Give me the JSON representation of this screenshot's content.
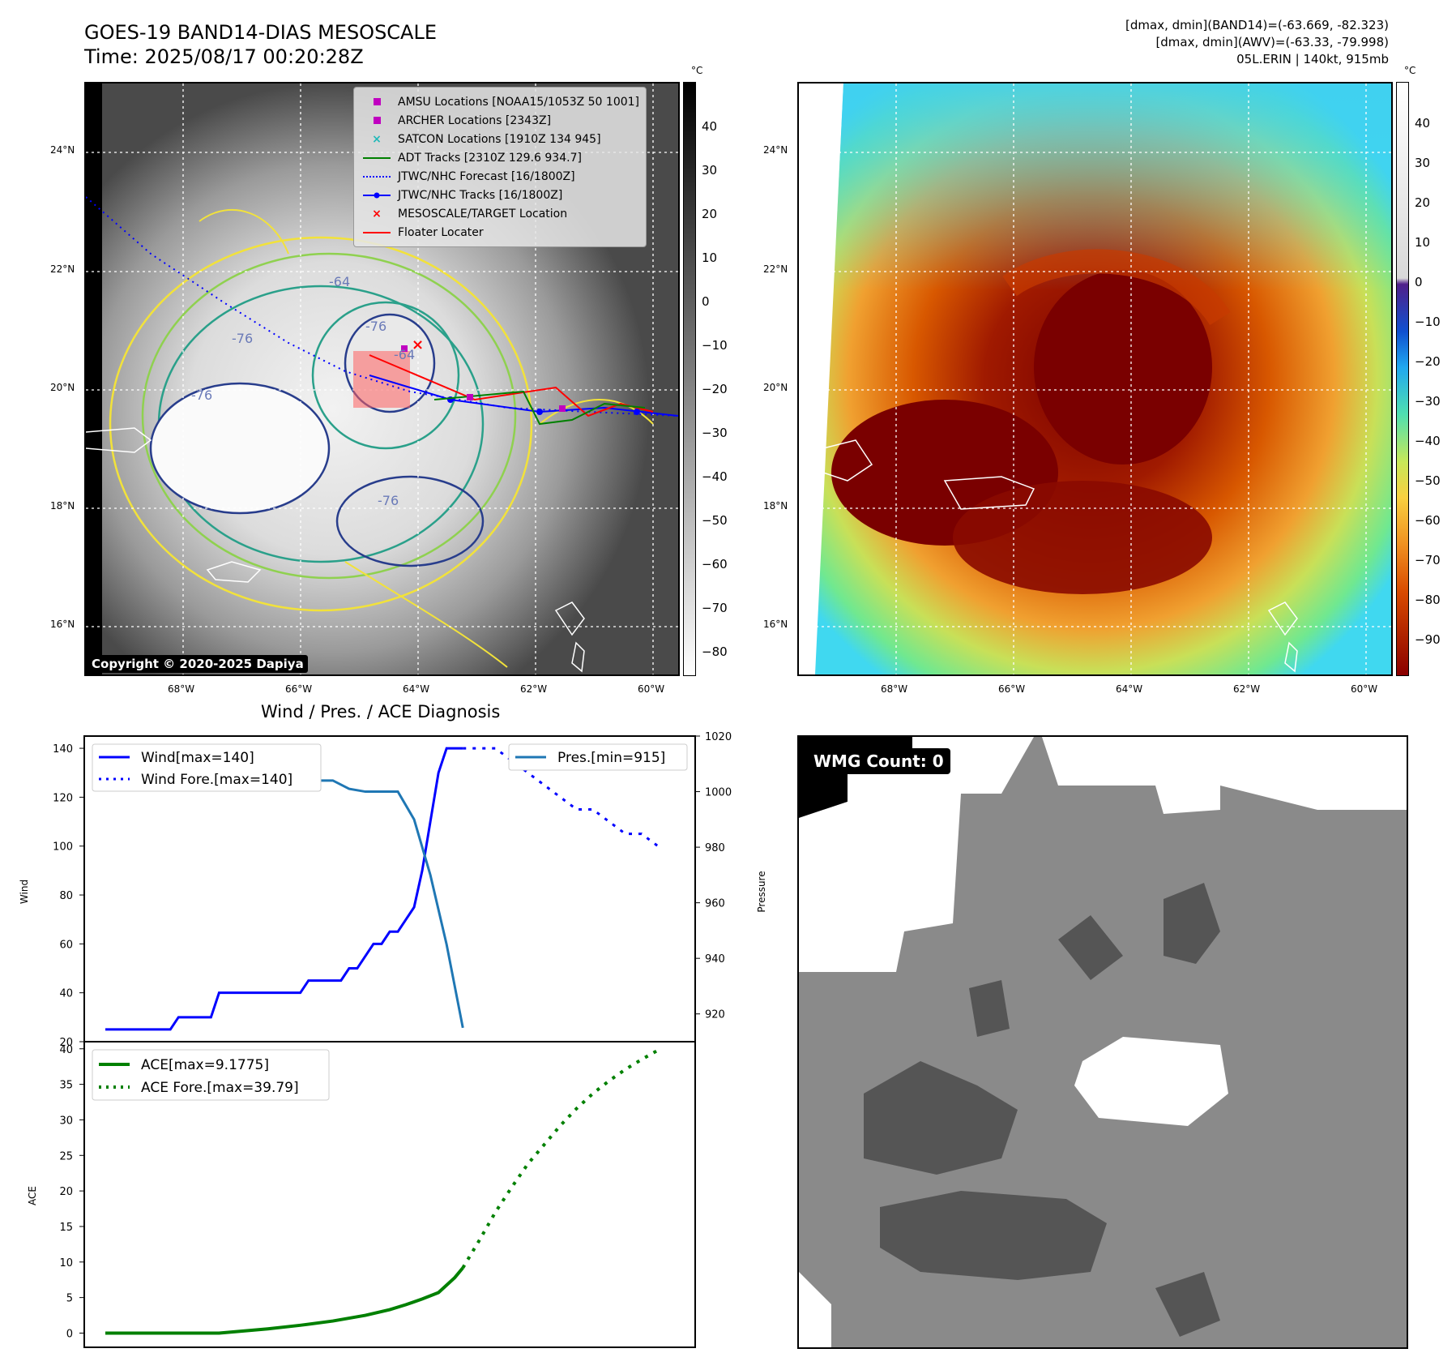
{
  "header": {
    "title_line1": "GOES-19 BAND14-DIAS MESOSCALE",
    "title_line2": "Time: 2025/08/17 00:20:28Z",
    "info_line1": "[dmax, dmin](BAND14)=(-63.669, -82.323)",
    "info_line2": "[dmax, dmin](AWV)=(-63.33, -79.998)",
    "info_line3": "05L.ERIN | 140kt, 915mb"
  },
  "map": {
    "lat_labels": [
      "24°N",
      "22°N",
      "20°N",
      "18°N",
      "16°N"
    ],
    "lon_labels": [
      "68°W",
      "66°W",
      "64°W",
      "62°W",
      "60°W"
    ],
    "copyright": "Copyright © 2020-2025 Dapiya",
    "contour_labels": [
      "-76",
      "-76",
      "-64",
      "-76",
      "-76",
      "-64"
    ]
  },
  "colorbar_ir": {
    "unit": "°C",
    "ticks": [
      "40",
      "30",
      "20",
      "10",
      "0",
      "−10",
      "−20",
      "−30",
      "−40",
      "−50",
      "−60",
      "−70",
      "−80"
    ]
  },
  "colorbar_awv": {
    "unit": "°C",
    "ticks": [
      "40",
      "30",
      "20",
      "10",
      "0",
      "−10",
      "−20",
      "−30",
      "−40",
      "−50",
      "−60",
      "−70",
      "−80",
      "−90"
    ]
  },
  "legend": {
    "items": [
      {
        "label": "AMSU Locations [NOAA15/1053Z 50 1001]",
        "icon": "square-marker",
        "color": "#c000c0"
      },
      {
        "label": "ARCHER Locations [2343Z]",
        "icon": "square-marker",
        "color": "#c000c0"
      },
      {
        "label": "SATCON Locations [1910Z 134 945]",
        "icon": "x-marker",
        "color": "#20b8b8"
      },
      {
        "label": "ADT Tracks [2310Z 129.6 934.7]",
        "icon": "line-solid",
        "color": "#008000"
      },
      {
        "label": "JTWC/NHC Forecast [16/1800Z]",
        "icon": "line-dotted",
        "color": "#0000ff"
      },
      {
        "label": "JTWC/NHC Tracks [16/1800Z]",
        "icon": "line-dot-marker",
        "color": "#0000ff"
      },
      {
        "label": "MESOSCALE/TARGET Location",
        "icon": "x-marker",
        "color": "#ff0000"
      },
      {
        "label": "Floater Locater",
        "icon": "line-solid",
        "color": "#ff0000"
      }
    ]
  },
  "chart_data": [
    {
      "type": "line",
      "title": "Wind / Pres. / ACE Diagnosis",
      "ylabel": "Wind",
      "y2label": "Pressure",
      "ylim": [
        20,
        145
      ],
      "y2lim": [
        910,
        1020
      ],
      "yticks": [
        20,
        40,
        60,
        80,
        100,
        120,
        140
      ],
      "y2ticks": [
        920,
        940,
        960,
        980,
        1000,
        1020
      ],
      "series": [
        {
          "name": "Wind[max=140]",
          "axis": "left",
          "style": "solid",
          "color": "#0000ff",
          "x": [
            0,
            1,
            2,
            3,
            4,
            5,
            6,
            7,
            8,
            9,
            10,
            11,
            12,
            13,
            14,
            15,
            16,
            17,
            18,
            19,
            20,
            21,
            22,
            23,
            24,
            25,
            26,
            27,
            28,
            29,
            30,
            31,
            32,
            33,
            34,
            35,
            36,
            37,
            38,
            39,
            40,
            41,
            42,
            43,
            44
          ],
          "values": [
            25,
            25,
            25,
            25,
            25,
            25,
            25,
            25,
            25,
            30,
            30,
            30,
            30,
            30,
            40,
            40,
            40,
            40,
            40,
            40,
            40,
            40,
            40,
            40,
            40,
            45,
            45,
            45,
            45,
            45,
            50,
            50,
            55,
            60,
            60,
            65,
            65,
            70,
            75,
            90,
            110,
            130,
            140,
            140,
            140
          ]
        },
        {
          "name": "Wind Fore.[max=140]",
          "axis": "left",
          "style": "dotted",
          "color": "#0000ff",
          "x": [
            44,
            46,
            48,
            50,
            52,
            54,
            56,
            58,
            60,
            62,
            64,
            66,
            68
          ],
          "values": [
            140,
            140,
            140,
            135,
            130,
            125,
            120,
            115,
            115,
            110,
            105,
            105,
            100
          ]
        },
        {
          "name": "Pres.[min=915]",
          "axis": "right",
          "style": "solid",
          "color": "#1f77b4",
          "x": [
            0,
            2,
            3,
            4,
            6,
            8,
            10,
            12,
            14,
            16,
            18,
            20,
            22,
            24,
            26,
            28,
            30,
            32,
            34,
            36,
            38,
            40,
            42,
            44
          ],
          "values": [
            1015,
            1015,
            1010,
            1009,
            1009,
            1009,
            1009,
            1008,
            1008,
            1007,
            1008,
            1006,
            1005,
            1004,
            1004,
            1004,
            1001,
            1000,
            1000,
            1000,
            990,
            970,
            945,
            915
          ]
        }
      ],
      "forecast_pressure": {
        "x": [
          44,
          46,
          48,
          50,
          52,
          54,
          56,
          58,
          60,
          62,
          64,
          66,
          68
        ],
        "values": [
          1015,
          1015,
          1015,
          1012,
          1008,
          1004,
          1000,
          996,
          996,
          992,
          988,
          988,
          985
        ]
      }
    },
    {
      "type": "line",
      "ylabel": "ACE",
      "ylim": [
        -2,
        41
      ],
      "yticks": [
        0,
        5,
        10,
        15,
        20,
        25,
        30,
        35,
        40
      ],
      "series": [
        {
          "name": "ACE[max=9.1775]",
          "style": "solid",
          "color": "#008000",
          "x": [
            0,
            4,
            8,
            14,
            20,
            24,
            28,
            32,
            35,
            37,
            39,
            41,
            43,
            44
          ],
          "values": [
            0,
            0,
            0,
            0,
            0.6,
            1.1,
            1.7,
            2.5,
            3.3,
            4.0,
            4.8,
            5.7,
            7.8,
            9.18
          ]
        },
        {
          "name": "ACE Fore.[max=39.79]",
          "style": "dotted",
          "color": "#008000",
          "x": [
            44,
            46,
            48,
            50,
            52,
            54,
            56,
            58,
            60,
            62,
            64,
            66,
            68
          ],
          "values": [
            9.18,
            13,
            17,
            20.5,
            23.8,
            26.5,
            29.2,
            31.6,
            33.7,
            35.5,
            37.1,
            38.5,
            39.79
          ]
        }
      ]
    }
  ],
  "wmg": {
    "label": "WMG Count: 0"
  }
}
